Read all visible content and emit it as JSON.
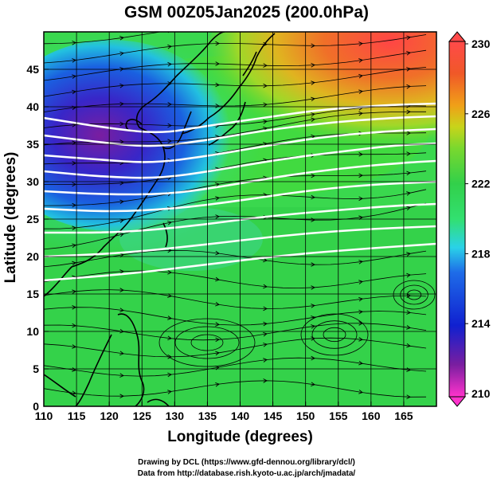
{
  "title": "GSM 00Z05Jan2025 (200.0hPa)",
  "axes": {
    "xlabel": "Longitude (degrees)",
    "ylabel": "Latitude  (degrees)",
    "xlim": [
      110,
      170
    ],
    "ylim": [
      0,
      50
    ],
    "xticks": [
      110,
      115,
      120,
      125,
      130,
      135,
      140,
      145,
      150,
      155,
      160,
      165
    ],
    "yticks": [
      0,
      5,
      10,
      15,
      20,
      25,
      30,
      35,
      40,
      45
    ]
  },
  "colorbar": {
    "range": [
      210,
      230
    ],
    "labels": [
      "230",
      "226",
      "222",
      "218",
      "214",
      "210"
    ],
    "colors": [
      "#ff33cc",
      "#7a1ea0",
      "#1020d0",
      "#1e6ce8",
      "#2ad2e8",
      "#32e070",
      "#32d04a",
      "#7ad82e",
      "#c8d41a",
      "#f0a018",
      "#f05828",
      "#ff4a4a"
    ]
  },
  "credits": {
    "line1": "Drawing by DCL (https://www.gfd-dennou.org/library/dcl/)",
    "line2": "Data from http://database.rish.kyoto-u.ac.jp/arch/jmadata/"
  }
}
